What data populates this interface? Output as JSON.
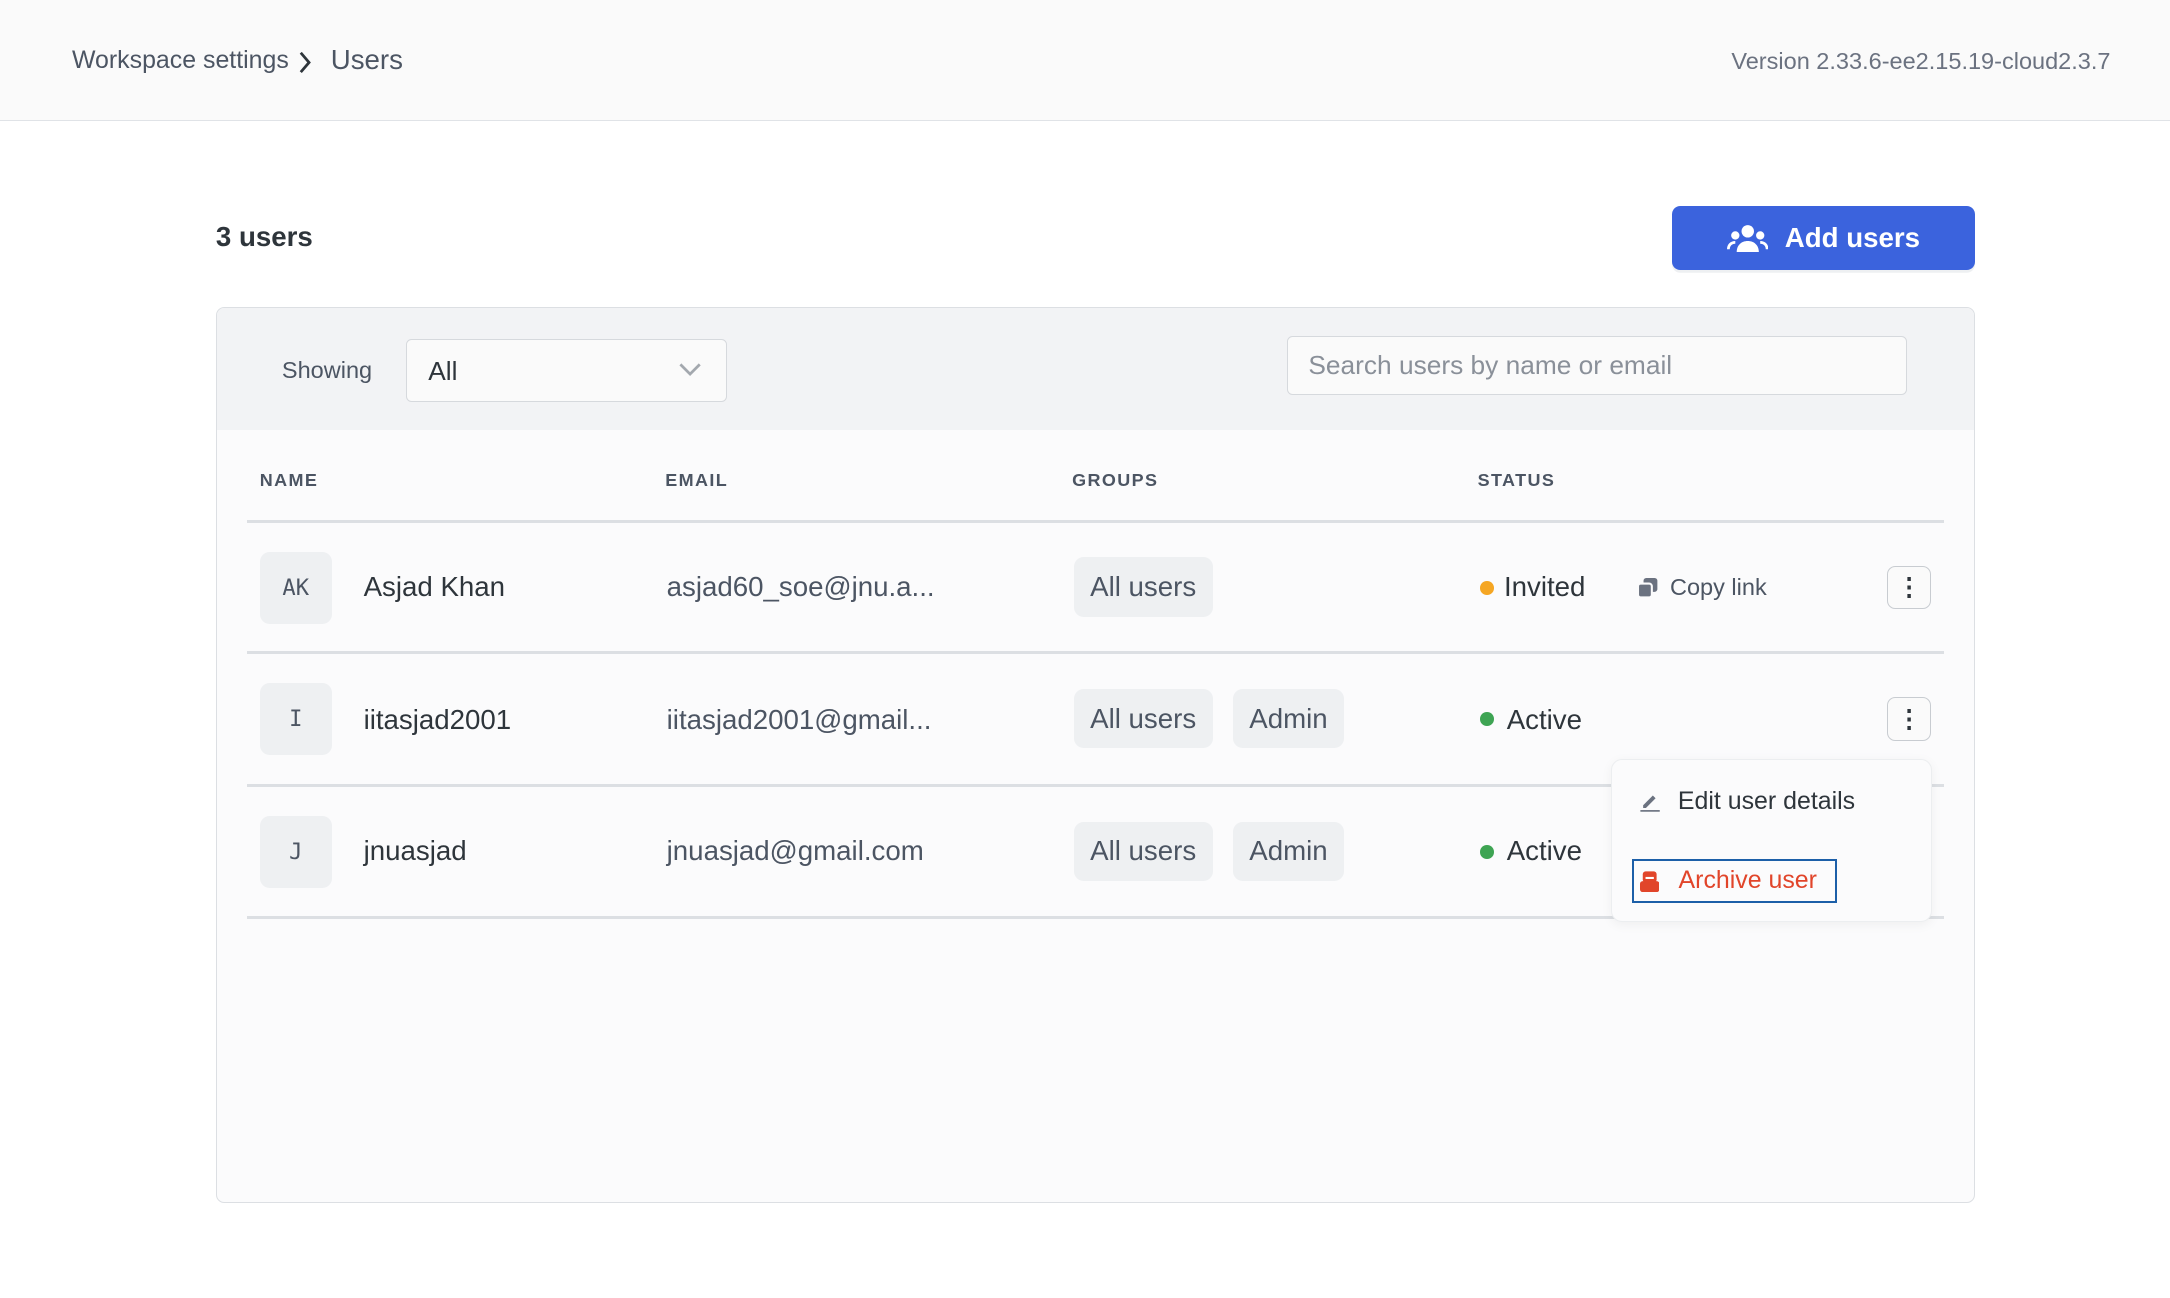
{
  "header": {
    "breadcrumb": [
      "Workspace settings",
      "Users"
    ],
    "version": "Version 2.33.6-ee2.15.19-cloud2.3.7"
  },
  "summary": {
    "count_label": "3 users",
    "add_button": "Add users"
  },
  "filter": {
    "label": "Showing",
    "selected": "All",
    "search_placeholder": "Search users by name or email"
  },
  "table": {
    "columns": [
      "NAME",
      "EMAIL",
      "GROUPS",
      "STATUS"
    ],
    "rows": [
      {
        "initials": "AK",
        "name": "Asjad Khan",
        "email": "asjad60_soe@jnu.a...",
        "groups": [
          "All users"
        ],
        "status": "Invited",
        "status_color": "#f5a623",
        "action": "Copy link"
      },
      {
        "initials": "I",
        "name": "iitasjad2001",
        "email": "iitasjad2001@gmail...",
        "groups": [
          "All users",
          "Admin"
        ],
        "status": "Active",
        "status_color": "#3ea453"
      },
      {
        "initials": "J",
        "name": "jnuasjad",
        "email": "jnuasjad@gmail.com",
        "groups": [
          "All users",
          "Admin"
        ],
        "status": "Active",
        "status_color": "#3ea453"
      }
    ]
  },
  "menu": {
    "items": [
      {
        "label": "Edit user details",
        "icon": "pencil-icon"
      },
      {
        "label": "Archive user",
        "icon": "archive-icon",
        "color": "#e1452a"
      }
    ]
  },
  "colors": {
    "accent": "#3b63dd",
    "danger": "#e1452a",
    "focus": "#1c5fa8"
  }
}
